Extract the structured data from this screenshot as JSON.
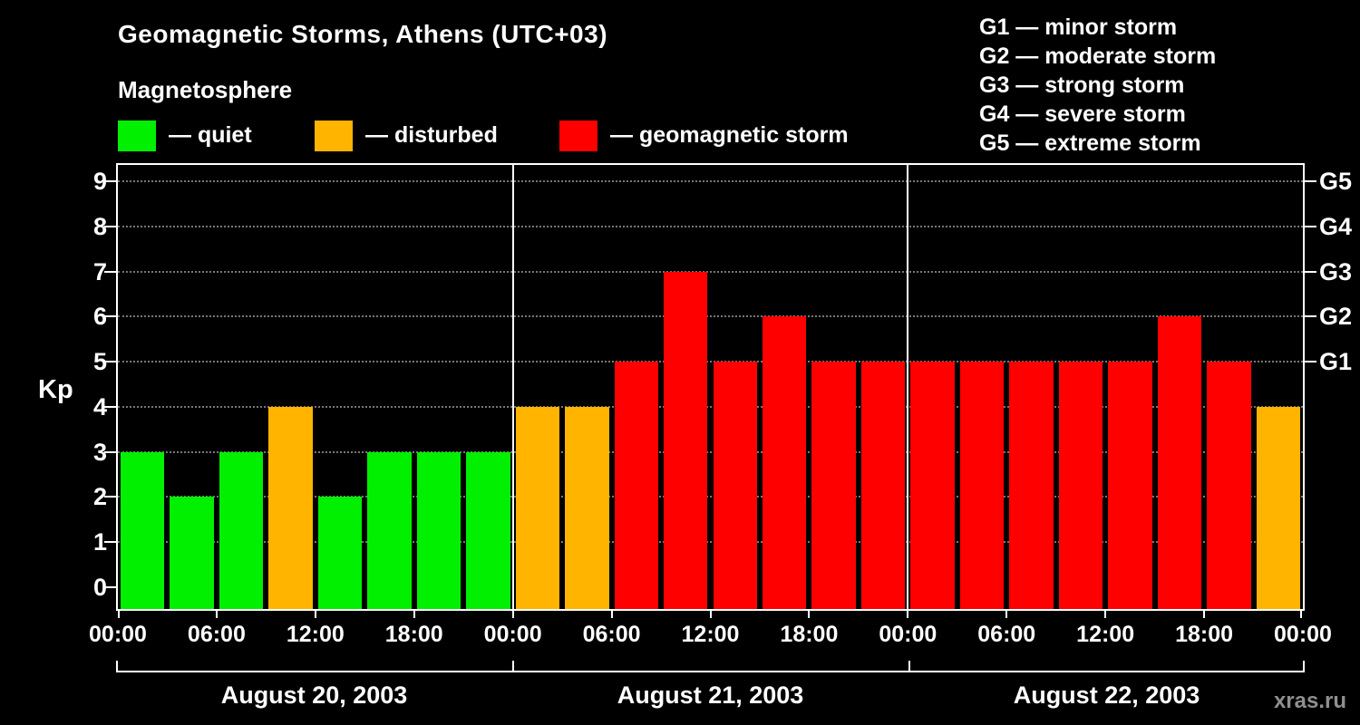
{
  "title": "Geomagnetic Storms, Athens (UTC+03)",
  "watermark": "xras.ru",
  "legend": {
    "heading": "Magnetosphere",
    "items": [
      {
        "key": "quiet",
        "label": "— quiet",
        "color": "#00f000"
      },
      {
        "key": "disturbed",
        "label": "— disturbed",
        "color": "#ffb400"
      },
      {
        "key": "storm",
        "label": "— geomagnetic storm",
        "color": "#ff0000"
      }
    ]
  },
  "storm_scale_legend": [
    "G1 — minor storm",
    "G2 — moderate storm",
    "G3 — strong storm",
    "G4 — severe storm",
    "G5 — extreme storm"
  ],
  "chart_data": {
    "type": "bar",
    "title": "Geomagnetic Storms, Athens (UTC+03)",
    "ylabel": "Kp",
    "ylim": [
      0,
      9.5
    ],
    "yticks": [
      0,
      1,
      2,
      3,
      4,
      5,
      6,
      7,
      8,
      9
    ],
    "grid": "dotted horizontal gridlines at each Kp level",
    "legend_position": "top",
    "interval_hours": 3,
    "right_axis": [
      {
        "label": "G1",
        "value": 5
      },
      {
        "label": "G2",
        "value": 6
      },
      {
        "label": "G3",
        "value": 7
      },
      {
        "label": "G4",
        "value": 8
      },
      {
        "label": "G5",
        "value": 9
      }
    ],
    "x_tick_labels": [
      "00:00",
      "06:00",
      "12:00",
      "18:00",
      "00:00",
      "06:00",
      "12:00",
      "18:00",
      "00:00",
      "06:00",
      "12:00",
      "18:00",
      "00:00"
    ],
    "color_map": {
      "quiet": "#00f000",
      "disturbed": "#ffb400",
      "storm": "#ff0000"
    },
    "days": [
      {
        "date": "August 20, 2003",
        "values": [
          3,
          2,
          3,
          4,
          2,
          3,
          3,
          3
        ],
        "states": [
          "quiet",
          "quiet",
          "quiet",
          "disturbed",
          "quiet",
          "quiet",
          "quiet",
          "quiet"
        ]
      },
      {
        "date": "August 21, 2003",
        "values": [
          4,
          4,
          5,
          7,
          5,
          6,
          5,
          5
        ],
        "states": [
          "disturbed",
          "disturbed",
          "storm",
          "storm",
          "storm",
          "storm",
          "storm",
          "storm"
        ]
      },
      {
        "date": "August 22, 2003",
        "values": [
          5,
          5,
          5,
          5,
          5,
          6,
          5,
          4
        ],
        "states": [
          "storm",
          "storm",
          "storm",
          "storm",
          "storm",
          "storm",
          "storm",
          "disturbed"
        ]
      }
    ]
  }
}
